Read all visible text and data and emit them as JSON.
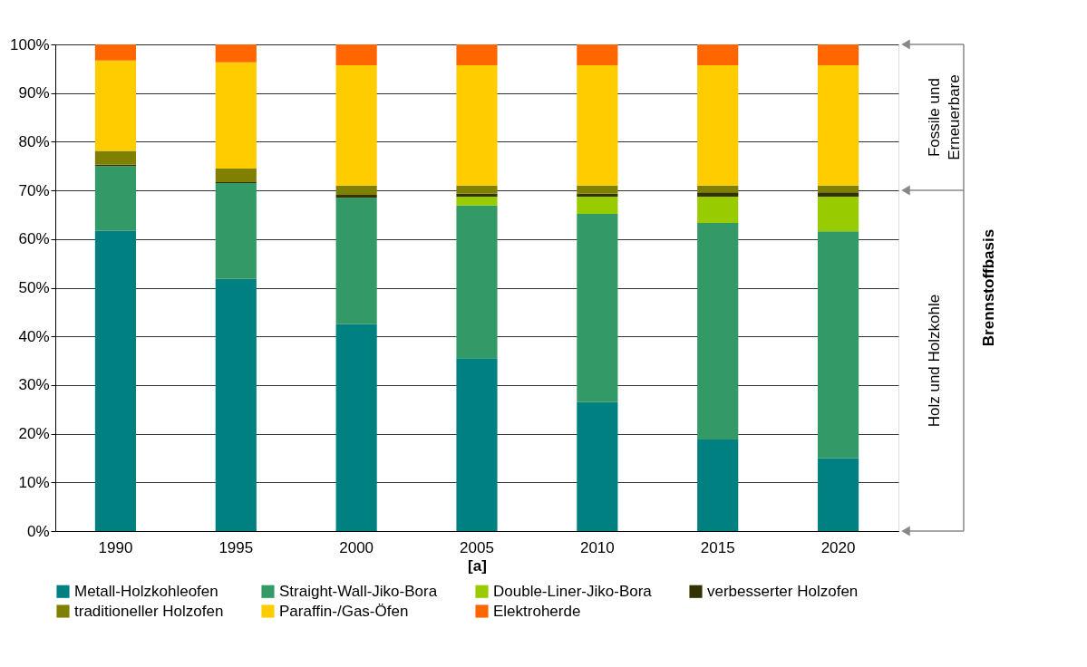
{
  "chart_data": {
    "type": "bar",
    "stacked": true,
    "xlabel": "[a]",
    "categories": [
      "1990",
      "1995",
      "2000",
      "2005",
      "2010",
      "2015",
      "2020"
    ],
    "series": [
      {
        "name": "Metall-Holzkohleofen",
        "color": "#008080",
        "values": [
          61.7,
          51.8,
          42.5,
          35.5,
          26.5,
          18.8,
          15.0
        ]
      },
      {
        "name": "Straight-Wall-Jiko-Bora",
        "color": "#339966",
        "values": [
          13.3,
          19.7,
          26.0,
          31.4,
          38.7,
          44.5,
          46.6
        ]
      },
      {
        "name": "Double-Liner-Jiko-Bora",
        "color": "#99cc00",
        "values": [
          0,
          0,
          0,
          1.8,
          3.5,
          5.4,
          7.1
        ]
      },
      {
        "name": "verbesserter Holzofen",
        "color": "#333300",
        "values": [
          0.3,
          0.2,
          0.6,
          0.6,
          0.6,
          0.9,
          0.9
        ]
      },
      {
        "name": "traditioneller Holzofen",
        "color": "#808000",
        "values": [
          2.8,
          2.8,
          1.9,
          1.7,
          1.7,
          1.4,
          1.4
        ]
      },
      {
        "name": "Paraffin-/Gas-Öfen",
        "color": "#ffcc00",
        "values": [
          18.6,
          21.8,
          24.7,
          24.7,
          24.7,
          24.7,
          24.7
        ]
      },
      {
        "name": "Elektroherde",
        "color": "#ff6600",
        "values": [
          3.3,
          3.7,
          4.3,
          4.3,
          4.3,
          4.3,
          4.3
        ]
      }
    ],
    "ylim": [
      0,
      100
    ],
    "yticks": [
      {
        "value": 0,
        "label": "0%"
      },
      {
        "value": 10,
        "label": "10%"
      },
      {
        "value": 20,
        "label": "20%"
      },
      {
        "value": 30,
        "label": "30%"
      },
      {
        "value": 40,
        "label": "40%"
      },
      {
        "value": 50,
        "label": "50%"
      },
      {
        "value": 60,
        "label": "60%"
      },
      {
        "value": 70,
        "label": "70%"
      },
      {
        "value": 80,
        "label": "80%"
      },
      {
        "value": 90,
        "label": "90%"
      },
      {
        "value": 100,
        "label": "100%"
      }
    ],
    "grid": "y",
    "legend": "bottom",
    "annotations": [
      "Fossile und Erneuerbare",
      "Holz und Holzkohle",
      "Brennstoffbasis"
    ]
  }
}
